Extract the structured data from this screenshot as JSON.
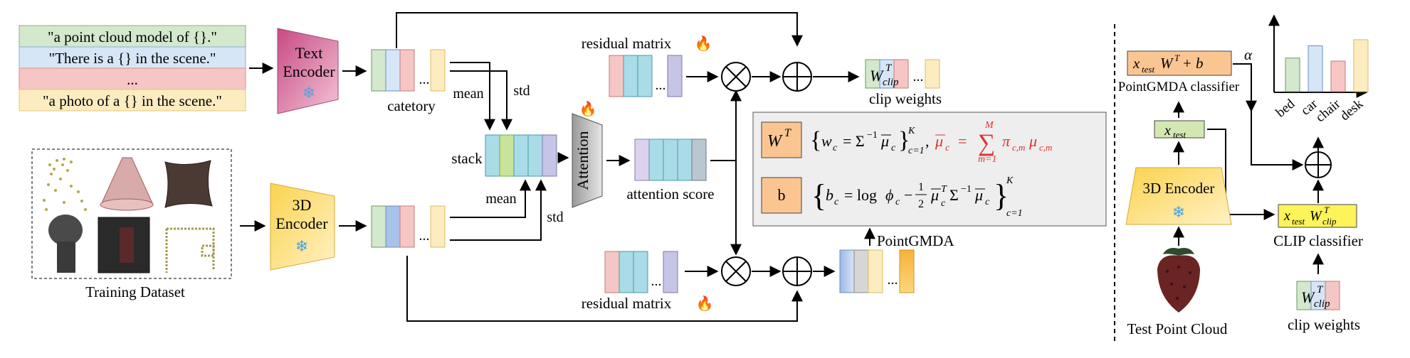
{
  "prompts": [
    "\"a point cloud model of {}.\"",
    "\"There is a {} in the scene.\"",
    "...",
    "\"a photo of a {} in the scene.\""
  ],
  "text_encoder": [
    "Text",
    "Encoder"
  ],
  "encoder_3d": [
    "3D",
    "Encoder"
  ],
  "catetory": "catetory",
  "mean": "mean",
  "std": "std",
  "stack": "stack",
  "attention": "Attention",
  "attention_score": "attention score",
  "residual_matrix": "residual matrix",
  "clip_weights": "clip weights",
  "pointgmda": "PointGMDA",
  "training_dataset": "Training Dataset",
  "ellipsis": "...",
  "formula": {
    "wt_box": "W",
    "wt_sup": "T",
    "b_box": "b"
  },
  "right": {
    "classifier_label": "PointGMDA classifier",
    "alpha": "α",
    "x_test": "x",
    "x_test_sub": "test",
    "encoder": "3D Encoder",
    "clip_classifier": "CLIP classifier",
    "test_point_cloud": "Test Point Cloud",
    "clip_weights": "clip weights",
    "bar_labels": [
      "bed",
      "car",
      "chair",
      "desk"
    ],
    "bar_values": [
      0.55,
      0.75,
      0.5,
      0.85
    ]
  },
  "colors": {
    "green": "#d3e8cc",
    "blue": "#d6e6f7",
    "red": "#f5c6c4",
    "yellow": "#fdecc0",
    "orange_box": "#fbc592",
    "formula_bg": "#eeeeee",
    "text_encoder": "#d86a9a",
    "encoder_3d": "#fcd96a",
    "red_math": "#e03030"
  }
}
